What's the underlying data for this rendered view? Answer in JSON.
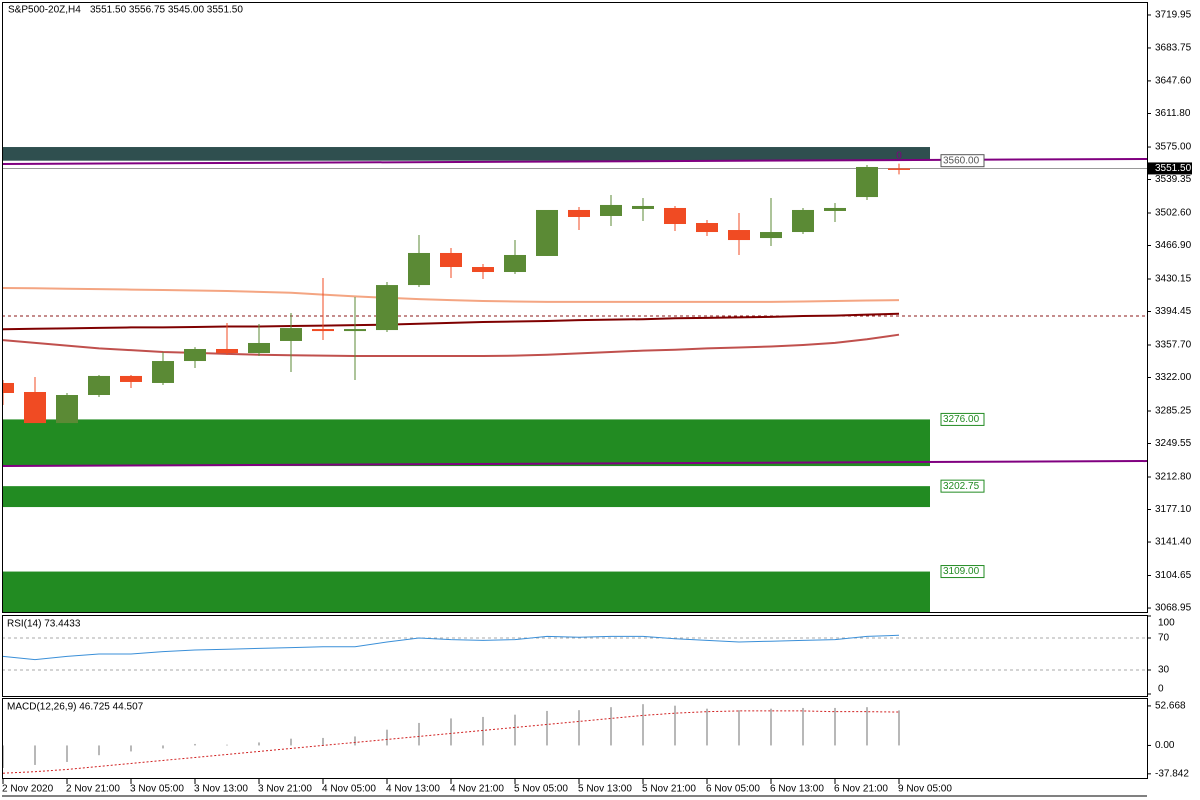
{
  "chart_data": {
    "type": "candlestick",
    "title": "S&P500-20Z,H4",
    "quote": "3551.50 3556.75 3545.00 3551.50",
    "marker": "0",
    "categories": [
      "2 Nov 2020",
      null,
      "2 Nov 21:00",
      null,
      "3 Nov 05:00",
      null,
      "3 Nov 13:00",
      null,
      "3 Nov 21:00",
      null,
      "4 Nov 05:00",
      null,
      "4 Nov 13:00",
      null,
      "4 Nov 21:00",
      null,
      "5 Nov 05:00",
      null,
      "5 Nov 13:00",
      null,
      "5 Nov 21:00",
      null,
      "6 Nov 05:00",
      null,
      "6 Nov 13:00",
      null,
      "6 Nov 21:00",
      null,
      "9 Nov 05:00"
    ],
    "open": [
      3316.0,
      3306.1,
      3272.0,
      3302.8,
      3323.7,
      3316.0,
      3340.1,
      3353.3,
      3348.9,
      3362.1,
      3375.2,
      3373.0,
      3374.1,
      3423.5,
      3458.7,
      3443.3,
      3437.8,
      3455.4,
      3505.9,
      3499.3,
      3507.0,
      3508.1,
      3491.6,
      3483.9,
      3475.1,
      3481.7,
      3504.8,
      3520.1,
      3551.5
    ],
    "high": [
      3319.3,
      3322.6,
      3305.0,
      3324.8,
      3324.8,
      3349.9,
      3355.4,
      3381.8,
      3380.7,
      3392.8,
      3431.2,
      3410.4,
      3426.8,
      3478.4,
      3464.2,
      3446.6,
      3472.9,
      3505.9,
      3509.2,
      3522.3,
      3519.0,
      3510.3,
      3494.9,
      3502.6,
      3519.0,
      3508.1,
      3513.6,
      3555.3,
      3556.75
    ],
    "low": [
      3291.8,
      3272.0,
      3272.0,
      3300.6,
      3310.5,
      3313.8,
      3332.5,
      3346.7,
      3345.6,
      3328.0,
      3363.2,
      3319.3,
      3371.9,
      3421.3,
      3431.2,
      3430.1,
      3435.6,
      3455.4,
      3483.9,
      3488.3,
      3493.8,
      3482.8,
      3477.3,
      3456.5,
      3466.4,
      3479.5,
      3492.7,
      3516.9,
      3545.0
    ],
    "close": [
      3305.0,
      3272.0,
      3302.8,
      3323.7,
      3317.1,
      3340.1,
      3353.3,
      3348.9,
      3359.9,
      3376.3,
      3373.0,
      3375.2,
      3423.5,
      3458.7,
      3443.3,
      3437.8,
      3456.5,
      3505.9,
      3498.2,
      3511.4,
      3510.3,
      3490.5,
      3481.7,
      3472.9,
      3481.7,
      3505.9,
      3508.1,
      3553.1,
      3551.5
    ],
    "up_color": "#5b8a35",
    "down_color": "#f04b23",
    "ylim": [
      3064.6,
      3734.2
    ],
    "yticks": [
      3719.95,
      3683.75,
      {
        "value": 3647.6,
        "label": "3647.60"
      },
      {
        "value": 3611.8,
        "label": "3611.80"
      },
      {
        "value": 3575,
        "label": "3575.00"
      },
      3539.35,
      {
        "value": 3502.6,
        "label": "3502.60"
      },
      {
        "value": 3466.9,
        "label": "3466.90"
      },
      3430.15,
      3394.45,
      {
        "value": 3357.7,
        "label": "3357.70"
      },
      {
        "value": 3322,
        "label": "3322.00"
      },
      3285.25,
      3249.55,
      {
        "value": 3212.8,
        "label": "3212.80"
      },
      {
        "value": 3177.1,
        "label": "3177.10"
      },
      {
        "value": 3141.4,
        "label": "3141.40"
      },
      3104.65,
      3068.95
    ],
    "current_price": {
      "value": 3551.5,
      "label": "3551.50"
    },
    "zones": [
      {
        "from": 3560,
        "to": 3575,
        "color": "#2f4f4f"
      },
      {
        "from": 3224.8,
        "to": 3276,
        "color": "#228b22"
      },
      {
        "from": 3179.8,
        "to": 3202.75,
        "color": "#228b22"
      },
      {
        "from": 3060,
        "to": 3109,
        "color": "#228b22"
      }
    ],
    "levels": [
      {
        "value": 3560,
        "label": "3560.00",
        "color": "#555555"
      },
      {
        "value": 3276,
        "label": "3276.00",
        "color": "#228b22"
      },
      {
        "value": 3202.75,
        "label": "3202.75",
        "color": "#228b22"
      },
      {
        "value": 3109,
        "label": "3109.00",
        "color": "#228b22"
      }
    ],
    "trendlines": [
      {
        "color": "#800080",
        "values": [
          3556.4,
          3561.9
        ]
      },
      {
        "color": "#800080",
        "values": [
          3224.8,
          3230.3
        ]
      }
    ],
    "dashed_level": {
      "value": 3389.5,
      "color": "#8b1a1a"
    },
    "moving_averages": [
      {
        "color": "#f4a582",
        "values": [
          3420.2,
          3420,
          3419.5,
          3419,
          3418.5,
          3418,
          3417.5,
          3417,
          3416,
          3415,
          3413,
          3411,
          3409.5,
          3408,
          3407,
          3406,
          3405.5,
          3405,
          3405,
          3405,
          3405,
          3405,
          3405,
          3405,
          3405,
          3405.5,
          3406,
          3406.5,
          3407
        ]
      },
      {
        "color": "#7f0000",
        "values": [
          3375,
          3375.5,
          3376,
          3376.5,
          3377,
          3377,
          3377.5,
          3378,
          3378,
          3378.5,
          3379,
          3379.5,
          3380,
          3381,
          3382,
          3383,
          3383.5,
          3384,
          3385,
          3385.5,
          3386,
          3387,
          3387.5,
          3388,
          3388.5,
          3389.5,
          3390,
          3391,
          3392
        ]
      },
      {
        "color": "#c0504d",
        "values": [
          3363,
          3360,
          3357,
          3354,
          3352,
          3350,
          3349,
          3348,
          3347,
          3346.5,
          3346,
          3345.6,
          3345.6,
          3345.6,
          3345.6,
          3345.6,
          3346,
          3347,
          3348.5,
          3350,
          3351.5,
          3352.5,
          3354,
          3355,
          3356,
          3357.7,
          3360,
          3364,
          3369
        ]
      }
    ],
    "rsi": {
      "label": "RSI(14) 73.4433",
      "color": "#3a8fd8",
      "values": [
        47,
        43,
        47,
        50,
        50,
        53,
        55,
        56,
        57,
        58,
        59,
        59,
        65,
        70,
        68,
        67,
        68,
        72,
        71,
        72,
        72,
        69,
        67,
        65,
        66,
        67,
        68,
        72,
        73.4433
      ],
      "ylim": [
        0,
        100
      ],
      "yticks": [
        100,
        70,
        30,
        0
      ],
      "levels": [
        70,
        30
      ]
    },
    "macd": {
      "label": "MACD(12,26,9) 46.725 44.507",
      "hist_color": "#b8b8b8",
      "signal_color": "#d02020",
      "histogram": [
        -30,
        -26,
        -22,
        -13,
        -8,
        -4,
        2,
        1,
        4,
        9,
        10,
        12,
        21,
        30,
        36,
        38,
        41,
        46,
        47,
        51,
        55,
        53,
        49,
        47,
        49,
        50,
        50,
        51,
        46.725
      ],
      "signal": [
        -37,
        -35,
        -32,
        -28,
        -24,
        -20,
        -16,
        -12,
        -8,
        -4,
        0,
        4,
        8,
        12,
        16,
        20,
        24,
        28,
        32,
        36,
        40,
        43,
        45,
        46,
        46,
        46,
        45,
        45,
        44.507
      ],
      "ylim": [
        -43.4,
        61.9
      ],
      "yticks": [
        52.668,
        {
          "value": 0,
          "label": "0.00"
        },
        -37.842
      ]
    }
  }
}
